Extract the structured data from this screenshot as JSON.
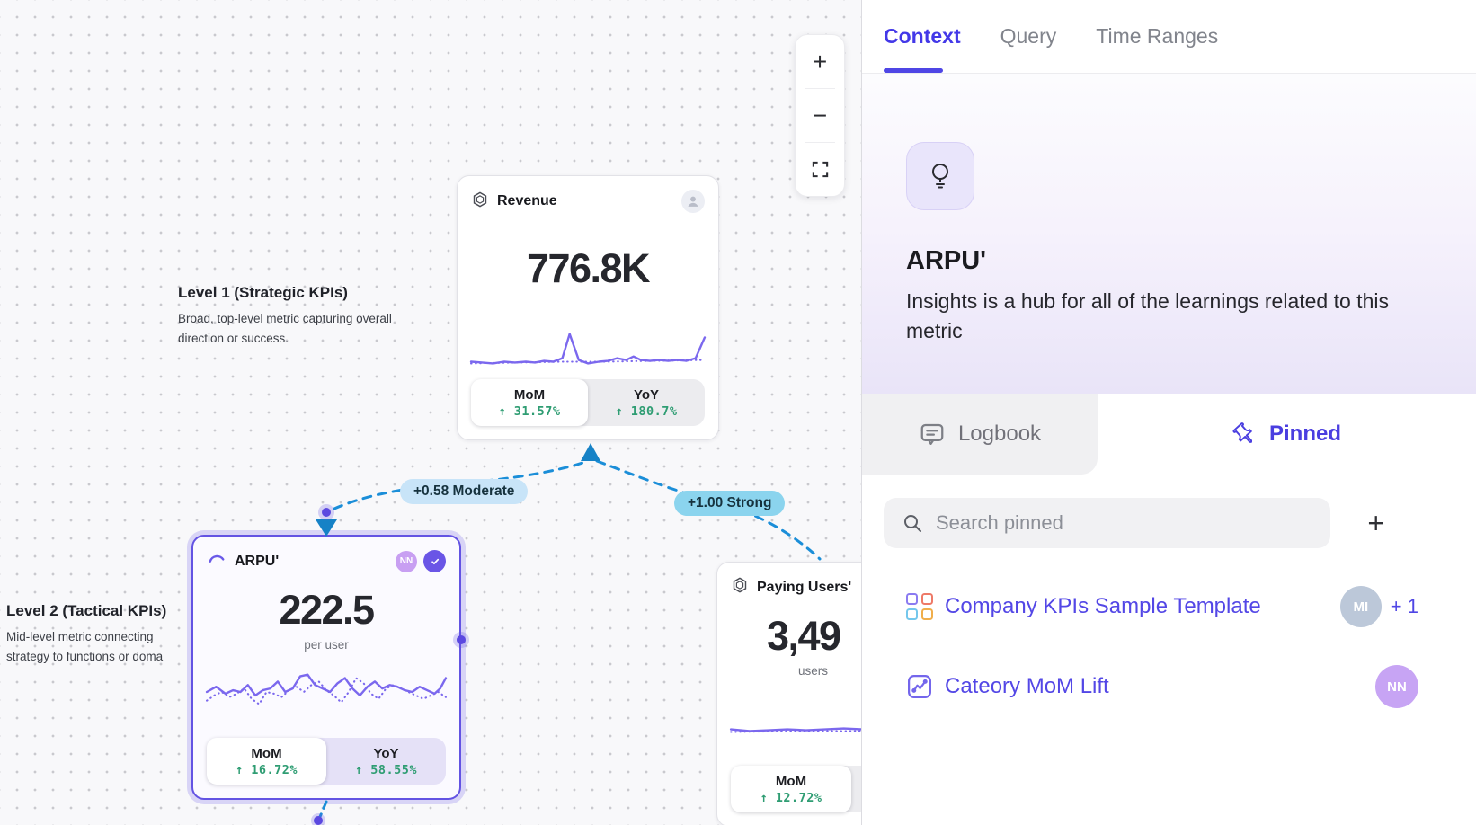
{
  "canvas": {
    "levels": [
      {
        "title": "Level 1 (Strategic KPIs)",
        "description": "Broad, top-level metric capturing overall direction or success."
      },
      {
        "title": "Level 2 (Tactical KPIs)",
        "description": "Mid-level metric connecting strategy to functions or doma"
      }
    ],
    "cards": {
      "revenue": {
        "title": "Revenue",
        "value": "776.8K",
        "mom_label": "MoM",
        "mom_value": "↑ 31.57%",
        "yoy_label": "YoY",
        "yoy_value": "↑ 180.7%"
      },
      "arpu": {
        "title": "ARPU'",
        "value": "222.5",
        "unit": "per user",
        "avatar": "NN",
        "mom_label": "MoM",
        "mom_value": "↑ 16.72%",
        "yoy_label": "YoY",
        "yoy_value": "↑ 58.55%"
      },
      "paying": {
        "title": "Paying Users'",
        "value": "3,49",
        "unit": "users",
        "mom_label": "MoM",
        "mom_value": "↑ 12.72%"
      }
    },
    "edges": [
      {
        "label": "+0.58 Moderate"
      },
      {
        "label": "+1.00 Strong"
      }
    ],
    "toolbar": {
      "zoom_in": "+",
      "zoom_out": "−"
    }
  },
  "panel": {
    "tabs": [
      {
        "label": "Context"
      },
      {
        "label": "Query"
      },
      {
        "label": "Time Ranges"
      }
    ],
    "metric": {
      "name": "ARPU'",
      "description": "Insights is a hub for all of the learnings related to this metric"
    },
    "subtabs": {
      "logbook": "Logbook",
      "pinned": "Pinned"
    },
    "search_placeholder": "Search pinned",
    "add_button": "+",
    "pinned_items": [
      {
        "label": "Company KPIs Sample Template",
        "avatar": "MI",
        "extra": "+ 1"
      },
      {
        "label": "Cateory MoM Lift",
        "avatar": "NN",
        "extra": ""
      }
    ]
  },
  "colors": {
    "accent_indigo": "#4f46e5",
    "sparkline_purple": "#7b68ee",
    "positive_green": "#2f9d73",
    "edge_blue": "#1b8ed8",
    "moderate_pill": "#c8e4f8",
    "strong_pill": "#8bd4ee",
    "selected_card_border": "#6353e3"
  },
  "sparklines": {
    "revenue": {
      "solid": [
        [
          2,
          45
        ],
        [
          14,
          46
        ],
        [
          26,
          47
        ],
        [
          38,
          45
        ],
        [
          50,
          46
        ],
        [
          62,
          45
        ],
        [
          72,
          46
        ],
        [
          82,
          44
        ],
        [
          92,
          45
        ],
        [
          102,
          41
        ],
        [
          110,
          13
        ],
        [
          120,
          43
        ],
        [
          130,
          47
        ],
        [
          142,
          45
        ],
        [
          152,
          44
        ],
        [
          162,
          41
        ],
        [
          172,
          43
        ],
        [
          180,
          39
        ],
        [
          188,
          43
        ],
        [
          198,
          44
        ],
        [
          208,
          43
        ],
        [
          218,
          44
        ],
        [
          228,
          43
        ],
        [
          238,
          44
        ],
        [
          248,
          41
        ],
        [
          258,
          17
        ]
      ],
      "dotted": [
        [
          2,
          47
        ],
        [
          50,
          46
        ],
        [
          100,
          45
        ],
        [
          150,
          45
        ],
        [
          200,
          44
        ],
        [
          258,
          43
        ]
      ]
    },
    "arpu": {
      "solid": [
        [
          2,
          30
        ],
        [
          12,
          24
        ],
        [
          22,
          32
        ],
        [
          30,
          28
        ],
        [
          38,
          30
        ],
        [
          46,
          22
        ],
        [
          54,
          34
        ],
        [
          62,
          28
        ],
        [
          70,
          26
        ],
        [
          78,
          18
        ],
        [
          86,
          30
        ],
        [
          94,
          26
        ],
        [
          102,
          12
        ],
        [
          110,
          10
        ],
        [
          118,
          22
        ],
        [
          126,
          26
        ],
        [
          134,
          30
        ],
        [
          142,
          20
        ],
        [
          150,
          14
        ],
        [
          158,
          26
        ],
        [
          166,
          34
        ],
        [
          174,
          24
        ],
        [
          182,
          18
        ],
        [
          190,
          26
        ],
        [
          198,
          22
        ],
        [
          206,
          24
        ],
        [
          214,
          28
        ],
        [
          222,
          30
        ],
        [
          230,
          24
        ],
        [
          238,
          28
        ],
        [
          246,
          32
        ],
        [
          252,
          26
        ],
        [
          258,
          14
        ]
      ],
      "dotted": [
        [
          2,
          40
        ],
        [
          10,
          34
        ],
        [
          18,
          30
        ],
        [
          26,
          36
        ],
        [
          34,
          32
        ],
        [
          42,
          26
        ],
        [
          50,
          38
        ],
        [
          58,
          44
        ],
        [
          66,
          30
        ],
        [
          74,
          32
        ],
        [
          82,
          36
        ],
        [
          90,
          28
        ],
        [
          98,
          24
        ],
        [
          106,
          30
        ],
        [
          114,
          22
        ],
        [
          122,
          18
        ],
        [
          130,
          28
        ],
        [
          138,
          34
        ],
        [
          146,
          42
        ],
        [
          154,
          30
        ],
        [
          162,
          14
        ],
        [
          170,
          20
        ],
        [
          178,
          32
        ],
        [
          186,
          38
        ],
        [
          194,
          26
        ],
        [
          202,
          22
        ],
        [
          210,
          26
        ],
        [
          218,
          30
        ],
        [
          226,
          34
        ],
        [
          234,
          38
        ],
        [
          242,
          34
        ],
        [
          250,
          30
        ],
        [
          258,
          36
        ]
      ]
    },
    "paying": {
      "solid": [
        [
          2,
          43
        ],
        [
          22,
          45
        ],
        [
          42,
          44
        ],
        [
          62,
          43
        ],
        [
          82,
          44
        ],
        [
          102,
          43
        ],
        [
          122,
          42
        ],
        [
          142,
          43
        ],
        [
          152,
          41
        ],
        [
          162,
          42
        ],
        [
          172,
          39
        ],
        [
          182,
          41
        ],
        [
          192,
          13
        ],
        [
          202,
          37
        ],
        [
          212,
          45
        ],
        [
          222,
          43
        ],
        [
          232,
          44
        ],
        [
          242,
          43
        ],
        [
          252,
          44
        ],
        [
          258,
          43
        ]
      ],
      "dotted": [
        [
          2,
          46
        ],
        [
          80,
          45
        ],
        [
          160,
          45
        ],
        [
          240,
          44
        ],
        [
          258,
          44
        ]
      ]
    }
  }
}
